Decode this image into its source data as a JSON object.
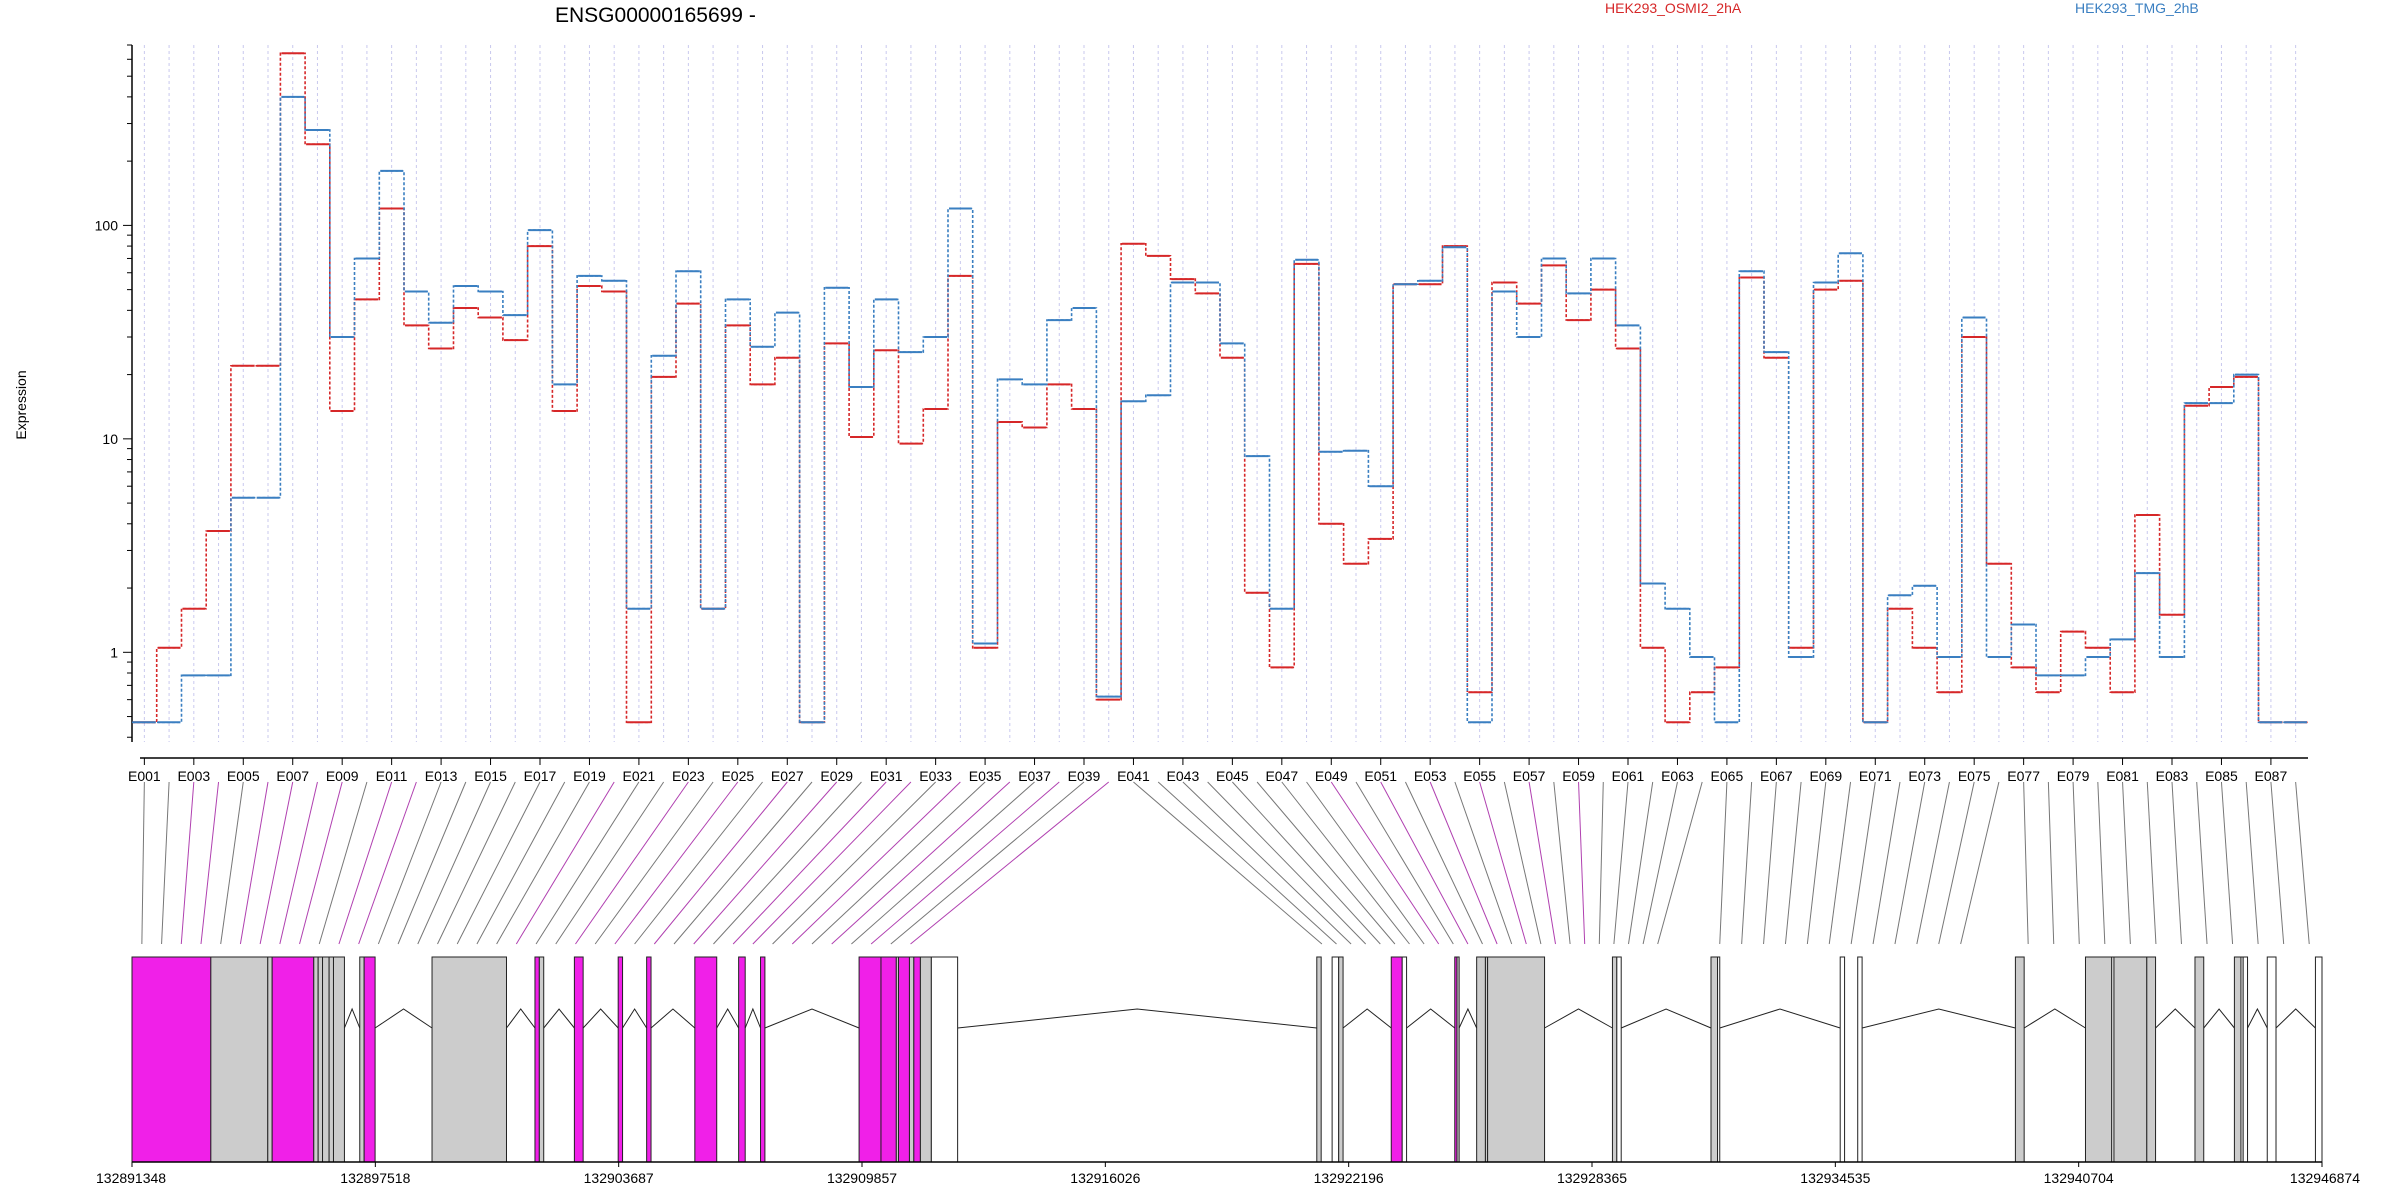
{
  "chart_data": {
    "type": "line",
    "title": "ENSG00000165699 -",
    "ylabel": "Expression",
    "y_scale": "log",
    "ylim": [
      0.38,
      700
    ],
    "yticks": [
      1,
      10,
      100
    ],
    "ytick_labels": [
      "1",
      "10",
      "100"
    ],
    "grid": "vertical dashed lines at each exon bin",
    "legend_position": "top",
    "categories": [
      "E001",
      "E002",
      "E003",
      "E004",
      "E005",
      "E006",
      "E007",
      "E008",
      "E009",
      "E010",
      "E011",
      "E012",
      "E013",
      "E014",
      "E015",
      "E016",
      "E017",
      "E018",
      "E019",
      "E020",
      "E021",
      "E022",
      "E023",
      "E024",
      "E025",
      "E026",
      "E027",
      "E028",
      "E029",
      "E030",
      "E031",
      "E032",
      "E033",
      "E034",
      "E035",
      "E036",
      "E037",
      "E038",
      "E039",
      "E040",
      "E041",
      "E042",
      "E043",
      "E044",
      "E045",
      "E046",
      "E047",
      "E048",
      "E049",
      "E050",
      "E051",
      "E052",
      "E053",
      "E054",
      "E055",
      "E056",
      "E057",
      "E058",
      "E059",
      "E060",
      "E061",
      "E062",
      "E063",
      "E064",
      "E065",
      "E066",
      "E067",
      "E068",
      "E069",
      "E070",
      "E071",
      "E072",
      "E073",
      "E074",
      "E075",
      "E076",
      "E077",
      "E078",
      "E079",
      "E080",
      "E081",
      "E082",
      "E083",
      "E084",
      "E085",
      "E086",
      "E087",
      "E088"
    ],
    "series": [
      {
        "name": "HEK293_OSMI2_2hA",
        "color": "#d62728",
        "values": [
          0.47,
          1.05,
          1.6,
          3.7,
          22,
          22,
          640,
          240,
          13.5,
          45,
          120,
          34,
          26.5,
          41,
          37,
          29,
          80,
          13.5,
          52,
          49,
          0.47,
          19.5,
          43,
          1.6,
          34,
          18,
          24,
          0.47,
          28,
          10.2,
          26,
          9.5,
          13.8,
          58,
          1.05,
          12,
          11.3,
          18,
          13.8,
          0.6,
          82,
          72,
          56,
          48,
          24,
          1.9,
          0.85,
          66,
          4.0,
          2.6,
          3.4,
          53,
          53,
          80,
          0.65,
          54,
          43,
          65,
          36,
          50,
          26.5,
          1.05,
          0.47,
          0.65,
          0.85,
          57,
          24,
          1.05,
          50,
          55,
          0.47,
          1.6,
          1.05,
          0.65,
          30,
          2.6,
          0.85,
          0.65,
          1.25,
          1.05,
          0.65,
          4.4,
          1.5,
          14.3,
          17.5,
          19.5,
          0.47,
          0.47
        ]
      },
      {
        "name": "HEK293_TMG_2hB",
        "color": "#3a7fc1",
        "values": [
          0.47,
          0.47,
          0.78,
          0.78,
          5.3,
          5.3,
          400,
          280,
          30,
          70,
          180,
          49,
          35,
          52,
          49,
          38,
          95,
          18,
          58,
          55,
          1.6,
          24.5,
          61,
          1.6,
          45,
          27,
          39,
          0.47,
          51,
          17.5,
          45,
          25.5,
          30,
          120,
          1.1,
          19,
          18,
          36,
          41,
          0.62,
          15,
          16,
          54,
          54,
          28,
          8.3,
          1.6,
          69,
          8.7,
          8.8,
          6.0,
          53,
          55,
          79,
          0.47,
          49,
          30,
          70,
          48,
          70,
          34,
          2.1,
          1.6,
          0.95,
          0.47,
          61,
          25.5,
          0.95,
          54,
          74,
          0.47,
          1.85,
          2.05,
          0.95,
          37,
          0.95,
          1.35,
          0.78,
          0.78,
          0.95,
          1.15,
          2.35,
          0.95,
          14.7,
          14.7,
          20,
          0.47,
          0.47
        ]
      }
    ],
    "xaxis_ticks": [
      "E001",
      "E003",
      "E005",
      "E007",
      "E009",
      "E011",
      "E013",
      "E015",
      "E017",
      "E019",
      "E021",
      "E023",
      "E025",
      "E027",
      "E029",
      "E031",
      "E033",
      "E035",
      "E037",
      "E039",
      "E041",
      "E043",
      "E045",
      "E047",
      "E049",
      "E051",
      "E053",
      "E055",
      "E057",
      "E059",
      "E061",
      "E063",
      "E065",
      "E067",
      "E069",
      "E071",
      "E073",
      "E075",
      "E077",
      "E079",
      "E081",
      "E083",
      "E085",
      "E087"
    ],
    "gene_model": {
      "genomic_ticks": [
        "132891348",
        "132897518",
        "132903687",
        "132909857",
        "132916026",
        "132922196",
        "132928365",
        "132934535",
        "132940704",
        "132946874"
      ],
      "highlight_color": "#f020e8",
      "link_colors": {
        "normal": "#777777",
        "highlight": "#b040b0"
      },
      "exon_colors": {
        "gray": "#cccccc",
        "white": "#ffffff"
      }
    }
  }
}
